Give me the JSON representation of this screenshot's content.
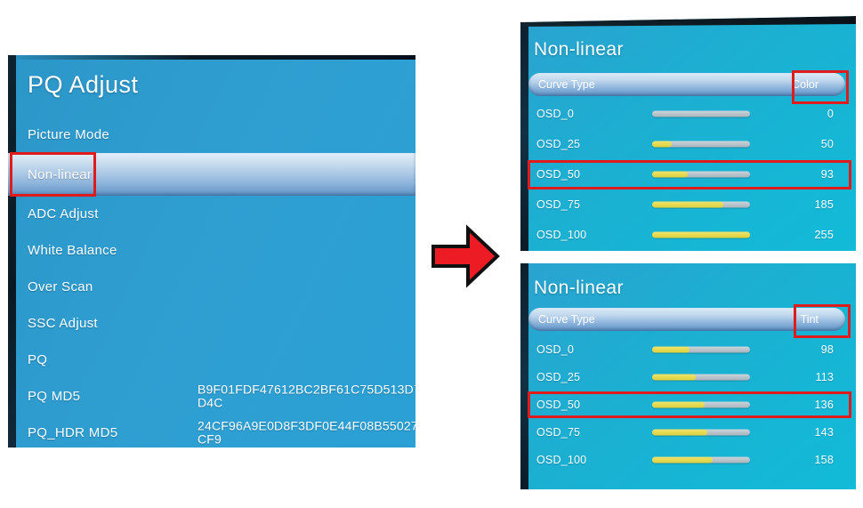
{
  "left_panel": {
    "title": "PQ Adjust",
    "items": [
      {
        "label": "Picture Mode",
        "value": "",
        "selected": false,
        "boxed": false
      },
      {
        "label": "Non-linear",
        "value": "",
        "selected": true,
        "boxed": true
      },
      {
        "label": "ADC Adjust",
        "value": "",
        "selected": false,
        "boxed": false
      },
      {
        "label": "White Balance",
        "value": "",
        "selected": false,
        "boxed": false
      },
      {
        "label": "Over Scan",
        "value": "",
        "selected": false,
        "boxed": false
      },
      {
        "label": "SSC Adjust",
        "value": "",
        "selected": false,
        "boxed": false
      },
      {
        "label": "PQ",
        "value": "",
        "selected": false,
        "boxed": false
      },
      {
        "label": "PQ MD5",
        "value": "B9F01FDF47612BC2BF61C75D513D7D4C",
        "selected": false,
        "boxed": false
      },
      {
        "label": "PQ_HDR MD5",
        "value": "24CF96A9E0D8F3DF0E44F08B55027CF9",
        "selected": false,
        "boxed": false
      }
    ]
  },
  "arrow": {
    "name": "red-arrow",
    "direction": "right"
  },
  "slider_max": 255,
  "panels": [
    {
      "title": "Non-linear",
      "curve_type_label": "Curve Type",
      "curve_type_value": "Color",
      "rows": [
        {
          "label": "OSD_0",
          "value": 0,
          "boxed": false
        },
        {
          "label": "OSD_25",
          "value": 50,
          "boxed": false
        },
        {
          "label": "OSD_50",
          "value": 93,
          "boxed": true
        },
        {
          "label": "OSD_75",
          "value": 185,
          "boxed": false
        },
        {
          "label": "OSD_100",
          "value": 255,
          "boxed": false
        }
      ]
    },
    {
      "title": "Non-linear",
      "curve_type_label": "Curve Type",
      "curve_type_value": "Tint",
      "rows": [
        {
          "label": "OSD_0",
          "value": 98,
          "boxed": false
        },
        {
          "label": "OSD_25",
          "value": 113,
          "boxed": false
        },
        {
          "label": "OSD_50",
          "value": 136,
          "boxed": true
        },
        {
          "label": "OSD_75",
          "value": 143,
          "boxed": false
        },
        {
          "label": "OSD_100",
          "value": 158,
          "boxed": false
        }
      ]
    }
  ],
  "colors": {
    "left_panel_bg": "#2f9fd2",
    "right_panel_bg": "#18b4d4",
    "highlight_bar": "#9dbfe2",
    "slider_track": "#b3bec7",
    "slider_fill": "#e4d94f",
    "annotation_red": "#df1b1b",
    "arrow_red": "#ed1c24",
    "text": "#ffffff"
  }
}
